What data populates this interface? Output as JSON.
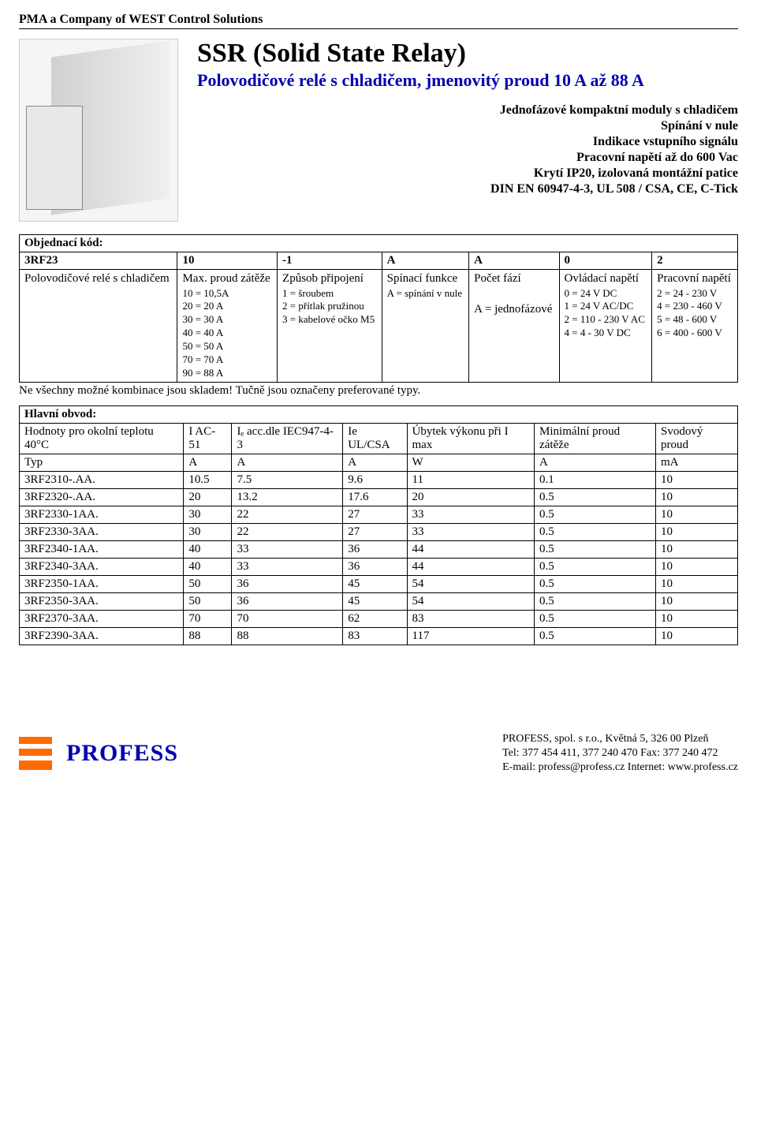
{
  "header": {
    "company_line": "PMA a Company of WEST Control Solutions"
  },
  "hero": {
    "title": "SSR (Solid State Relay)",
    "subtitle": "Polovodičové relé s chladičem, jmenovitý proud 10 A až 88 A",
    "features": [
      "Jednofázové kompaktní moduly s chladičem",
      "Spínání v nule",
      "Indikace vstupního signálu",
      "Pracovní napětí až do 600 Vac",
      "Krytí IP20, izolovaná montážní patice",
      "DIN EN 60947-4-3, UL 508 / CSA, CE, C-Tick"
    ]
  },
  "order": {
    "label": "Objednací kód:",
    "codes": [
      "3RF23",
      "10",
      "-1",
      "A",
      "A",
      "0",
      "2"
    ],
    "columns": [
      {
        "head": "Polovodičové relé s chladičem",
        "body": ""
      },
      {
        "head": "Max. proud zátěže",
        "body": "10 = 10,5A\n20 = 20 A\n30 = 30 A\n40 = 40 A\n50 = 50 A\n70 = 70 A\n90 = 88 A"
      },
      {
        "head": "Způsob připojení",
        "body": "1 = šroubem\n2 = přítlak pružinou\n3 = kabelové očko M5"
      },
      {
        "head": "Spínací funkce",
        "body": "A = spínání v nule"
      },
      {
        "head": "Počet fází\n\nA = jednofázové",
        "body": ""
      },
      {
        "head": "Ovládací napětí",
        "body": "0 = 24 V DC\n1 = 24 V AC/DC\n2 = 110 - 230 V AC\n4 = 4 - 30 V DC"
      },
      {
        "head": "Pracovní napětí",
        "body": "2 = 24 - 230 V\n4 = 230 - 460 V\n5 = 48 - 600 V\n6 = 400 - 600 V"
      }
    ],
    "note": "Ne všechny možné kombinace jsou skladem! Tučně jsou označeny preferované typy."
  },
  "main_circuit": {
    "section_title": "Hlavní obvod:",
    "headers": [
      "Hodnoty pro okolní teplotu 40°C",
      "I AC-51",
      "Iₑ acc.dle IEC947-4-3",
      "Ie UL/CSA",
      "Úbytek výkonu při I max",
      "Minimální proud zátěže",
      "Svodový proud"
    ],
    "unit_row": [
      "Typ",
      "A",
      "A",
      "A",
      "W",
      "A",
      "mA"
    ],
    "rows": [
      [
        "3RF2310-.AA.",
        "10.5",
        "7.5",
        "9.6",
        "11",
        "0.1",
        "10"
      ],
      [
        "3RF2320-.AA.",
        "20",
        "13.2",
        "17.6",
        "20",
        "0.5",
        "10"
      ],
      [
        "3RF2330-1AA.",
        "30",
        "22",
        "27",
        "33",
        "0.5",
        "10"
      ],
      [
        "3RF2330-3AA.",
        "30",
        "22",
        "27",
        "33",
        "0.5",
        "10"
      ],
      [
        "3RF2340-1AA.",
        "40",
        "33",
        "36",
        "44",
        "0.5",
        "10"
      ],
      [
        "3RF2340-3AA.",
        "40",
        "33",
        "36",
        "44",
        "0.5",
        "10"
      ],
      [
        "3RF2350-1AA.",
        "50",
        "36",
        "45",
        "54",
        "0.5",
        "10"
      ],
      [
        "3RF2350-3AA.",
        "50",
        "36",
        "45",
        "54",
        "0.5",
        "10"
      ],
      [
        "3RF2370-3AA.",
        "70",
        "70",
        "62",
        "83",
        "0.5",
        "10"
      ],
      [
        "3RF2390-3AA.",
        "88",
        "88",
        "83",
        "117",
        "0.5",
        "10"
      ]
    ]
  },
  "footer": {
    "logo_text": "PROFESS",
    "line1": "PROFESS, spol. s r.o., Květná 5, 326 00 Plzeň",
    "line2": "Tel: 377 454 411, 377 240 470   Fax: 377 240 472",
    "line3": "E-mail: profess@profess.cz   Internet: www.profess.cz"
  },
  "style": {
    "brand_blue": "#0000b0",
    "brand_orange": "#ff6a00",
    "title_fontsize_pt": 26,
    "subtitle_fontsize_pt": 17,
    "body_fontsize_pt": 11
  }
}
